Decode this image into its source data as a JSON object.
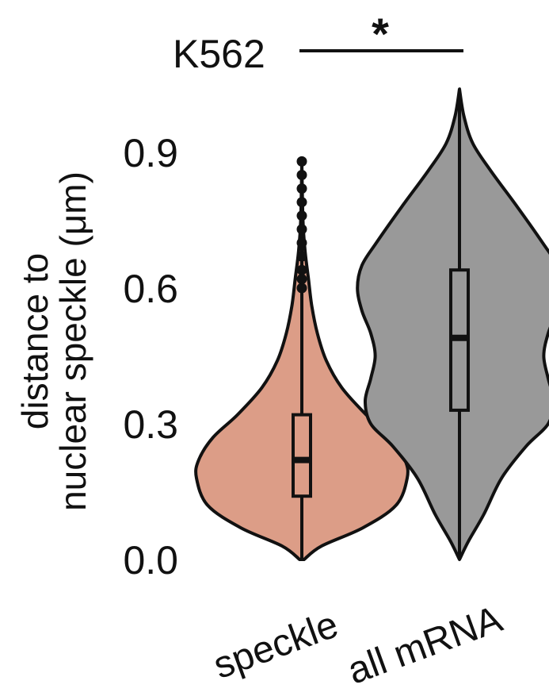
{
  "chart_data": {
    "type": "violin",
    "title": "K562",
    "ylabel_lines": [
      "distance to",
      "nuclear speckle (μm)"
    ],
    "ylim": [
      0.0,
      1.0
    ],
    "yticks": [
      0.0,
      0.3,
      0.6,
      0.9
    ],
    "ytick_labels": [
      "0.0",
      "0.3",
      "0.6",
      "0.9"
    ],
    "categories": [
      "speckle",
      "all mRNA"
    ],
    "significance": "*",
    "series": [
      {
        "category": "speckle",
        "color": "#dc9d87",
        "median": 0.22,
        "q1": 0.14,
        "q3": 0.32,
        "whisker_low": 0.0,
        "whisker_high": 0.88,
        "outliers": [
          0.6,
          0.62,
          0.64,
          0.67,
          0.7,
          0.73,
          0.76,
          0.79,
          0.82,
          0.85,
          0.88
        ],
        "density": [
          [
            0.0,
            0.02
          ],
          [
            0.03,
            0.18
          ],
          [
            0.07,
            0.55
          ],
          [
            0.12,
            0.85
          ],
          [
            0.18,
            0.95
          ],
          [
            0.22,
            0.93
          ],
          [
            0.27,
            0.8
          ],
          [
            0.32,
            0.58
          ],
          [
            0.38,
            0.36
          ],
          [
            0.44,
            0.22
          ],
          [
            0.5,
            0.14
          ],
          [
            0.56,
            0.09
          ],
          [
            0.62,
            0.06
          ],
          [
            0.68,
            0.03
          ],
          [
            0.75,
            0.01
          ],
          [
            0.88,
            0.0
          ]
        ]
      },
      {
        "category": "all mRNA",
        "color": "#999999",
        "median": 0.49,
        "q1": 0.33,
        "q3": 0.64,
        "whisker_low": 0.0,
        "whisker_high": 1.04,
        "outliers": [],
        "density": [
          [
            0.0,
            0.0
          ],
          [
            0.04,
            0.08
          ],
          [
            0.1,
            0.22
          ],
          [
            0.18,
            0.38
          ],
          [
            0.25,
            0.6
          ],
          [
            0.3,
            0.8
          ],
          [
            0.35,
            0.85
          ],
          [
            0.4,
            0.8
          ],
          [
            0.45,
            0.76
          ],
          [
            0.5,
            0.8
          ],
          [
            0.55,
            0.88
          ],
          [
            0.6,
            0.92
          ],
          [
            0.65,
            0.88
          ],
          [
            0.7,
            0.75
          ],
          [
            0.78,
            0.52
          ],
          [
            0.86,
            0.28
          ],
          [
            0.92,
            0.12
          ],
          [
            0.98,
            0.04
          ],
          [
            1.04,
            0.0
          ]
        ]
      }
    ]
  }
}
